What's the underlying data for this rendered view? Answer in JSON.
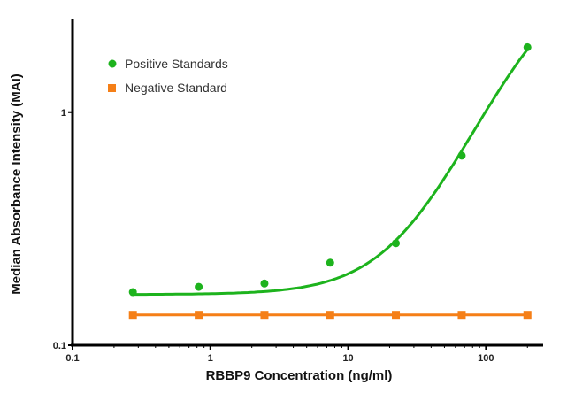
{
  "chart_data": {
    "type": "scatter",
    "title": "",
    "xlabel": "RBBP9 Concentration (ng/ml)",
    "ylabel": "Median Absorbance Intensity (MAI)",
    "xscale": "log",
    "yscale": "log",
    "xlim": [
      0.1,
      260
    ],
    "ylim": [
      0.1,
      2.5
    ],
    "xticks": [
      "0.1",
      "1",
      "10",
      "100"
    ],
    "yticks": [
      "0.1",
      "1"
    ],
    "grid": false,
    "legend_position": "top-left",
    "series": [
      {
        "name": "Positive Standards",
        "color": "#1db31d",
        "marker": "circle",
        "line": "fitted sigmoid curve",
        "x": [
          0.274,
          0.823,
          2.47,
          7.41,
          22.2,
          66.7,
          200
        ],
        "y": [
          0.169,
          0.178,
          0.184,
          0.226,
          0.274,
          0.651,
          1.9
        ]
      },
      {
        "name": "Negative Standard",
        "color": "#f57f17",
        "marker": "square",
        "line": "straight segments",
        "x": [
          0.274,
          0.823,
          2.47,
          7.41,
          22.2,
          66.7,
          200
        ],
        "y": [
          0.135,
          0.135,
          0.135,
          0.135,
          0.135,
          0.135,
          0.135
        ]
      }
    ]
  }
}
